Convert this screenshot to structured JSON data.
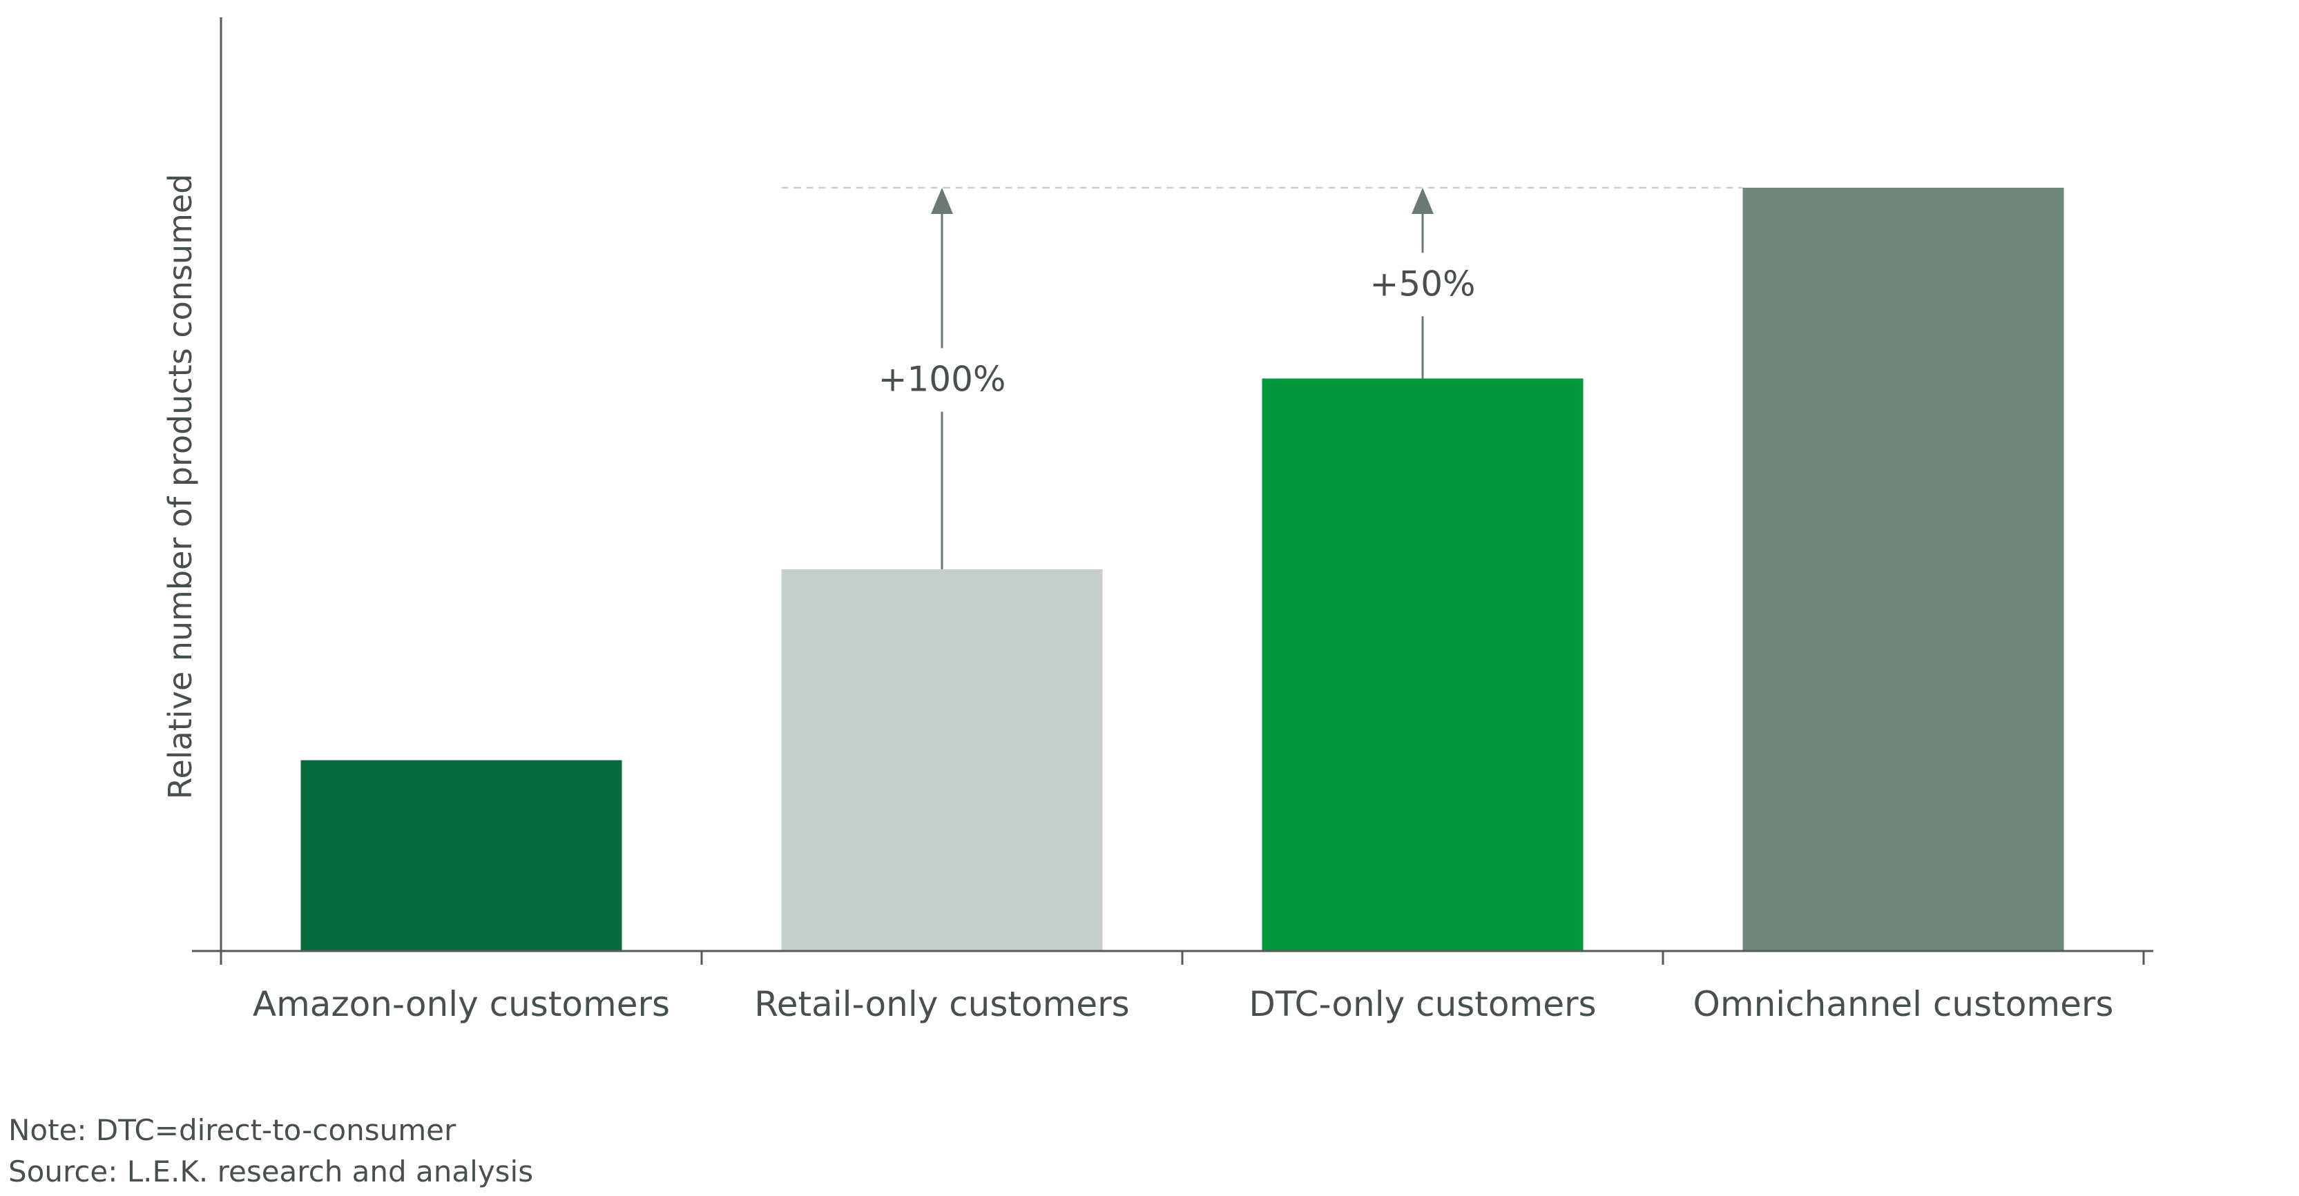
{
  "chart_data": {
    "type": "bar",
    "title": "",
    "xlabel": "",
    "ylabel": "Relative number of products consumed",
    "ylim": [
      0,
      4
    ],
    "grid": false,
    "categories": [
      "Amazon-only customers",
      "Retail-only customers",
      "DTC-only customers",
      "Omnichannel customers"
    ],
    "values": [
      1,
      2,
      3,
      4
    ],
    "colors": [
      "#086b3c",
      "#c5ceca",
      "#02973b",
      "#70877b"
    ],
    "annotations": [
      {
        "category_index": 1,
        "from": 2,
        "to": 4,
        "label": "+100%"
      },
      {
        "category_index": 2,
        "from": 3,
        "to": 4,
        "label": "+50%"
      }
    ],
    "reference_line": {
      "value": 4,
      "style": "dashed"
    }
  },
  "footnotes": {
    "note": "Note: DTC=direct-to-consumer",
    "source": "Source: L.E.K. research and analysis"
  }
}
